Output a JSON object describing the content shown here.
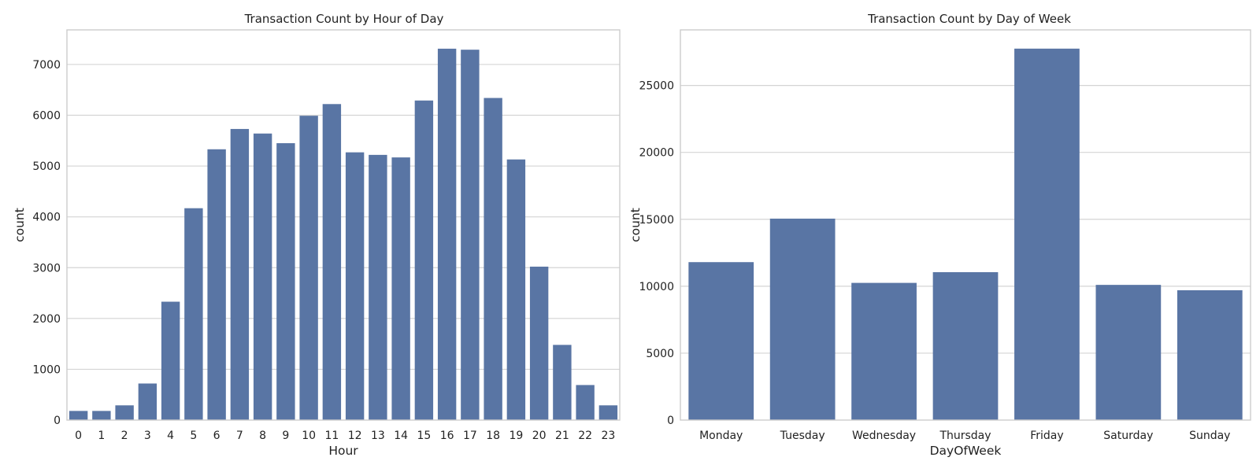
{
  "chart_data": [
    {
      "type": "bar",
      "title": "Transaction Count by Hour of Day",
      "xlabel": "Hour",
      "ylabel": "count",
      "categories": [
        "0",
        "1",
        "2",
        "3",
        "4",
        "5",
        "6",
        "7",
        "8",
        "9",
        "10",
        "11",
        "12",
        "13",
        "14",
        "15",
        "16",
        "17",
        "18",
        "19",
        "20",
        "21",
        "22",
        "23"
      ],
      "values": [
        180,
        180,
        290,
        720,
        2330,
        4170,
        5330,
        5730,
        5640,
        5450,
        5990,
        6220,
        5270,
        5220,
        5170,
        6290,
        7310,
        7290,
        6340,
        5130,
        3020,
        1480,
        690,
        290
      ],
      "yticks": [
        0,
        1000,
        2000,
        3000,
        4000,
        5000,
        6000,
        7000
      ],
      "ylim": [
        0,
        7680
      ],
      "grid": "horizontal",
      "color": "#5975a4"
    },
    {
      "type": "bar",
      "title": "Transaction Count by Day of Week",
      "xlabel": "DayOfWeek",
      "ylabel": "count",
      "categories": [
        "Monday",
        "Tuesday",
        "Wednesday",
        "Thursday",
        "Friday",
        "Saturday",
        "Sunday"
      ],
      "values": [
        11800,
        15050,
        10250,
        11050,
        27750,
        10100,
        9700
      ],
      "yticks": [
        0,
        5000,
        10000,
        15000,
        20000,
        25000
      ],
      "ylim": [
        0,
        29150
      ],
      "grid": "horizontal",
      "color": "#5975a4"
    }
  ]
}
